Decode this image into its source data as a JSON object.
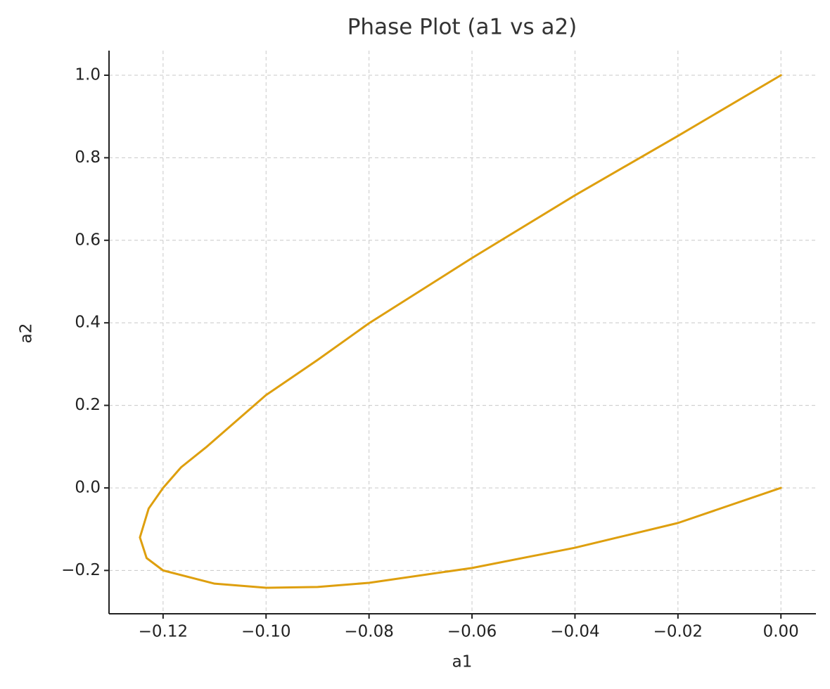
{
  "chart_data": {
    "type": "line",
    "title": "Phase Plot (a1 vs a2)",
    "x_label": "a1",
    "y_label": "a2",
    "x": [
      0.0,
      -0.02,
      -0.04,
      -0.06,
      -0.08,
      -0.09,
      -0.1,
      -0.1115,
      -0.1165,
      -0.12,
      -0.1228,
      -0.1245,
      -0.1232,
      -0.12,
      -0.11,
      -0.1,
      -0.09,
      -0.08,
      -0.06,
      -0.04,
      -0.02,
      0.0
    ],
    "series": [
      {
        "color": "#de9f0e",
        "values": [
          1.0,
          0.853,
          0.709,
          0.557,
          0.399,
          0.31,
          0.225,
          0.1,
          0.05,
          0.0,
          -0.05,
          -0.12,
          -0.17,
          -0.2,
          -0.232,
          -0.242,
          -0.24,
          -0.23,
          -0.194,
          -0.145,
          -0.085,
          0.0
        ]
      }
    ],
    "xlim": [
      -0.1305,
      0.0068
    ],
    "ylim": [
      -0.305,
      1.0596
    ],
    "xticks": [
      {
        "value": -0.12,
        "label": "−0.12"
      },
      {
        "value": -0.1,
        "label": "−0.10"
      },
      {
        "value": -0.08,
        "label": "−0.08"
      },
      {
        "value": -0.06,
        "label": "−0.06"
      },
      {
        "value": -0.04,
        "label": "−0.04"
      },
      {
        "value": -0.02,
        "label": "−0.02"
      },
      {
        "value": 0,
        "label": "0.00"
      }
    ],
    "yticks": [
      {
        "value": -0.2,
        "label": "−0.2"
      },
      {
        "value": 0,
        "label": "0.0"
      },
      0.2,
      0.4,
      0.6,
      0.8,
      {
        "value": 1,
        "label": "1.0"
      }
    ],
    "grid": true
  }
}
